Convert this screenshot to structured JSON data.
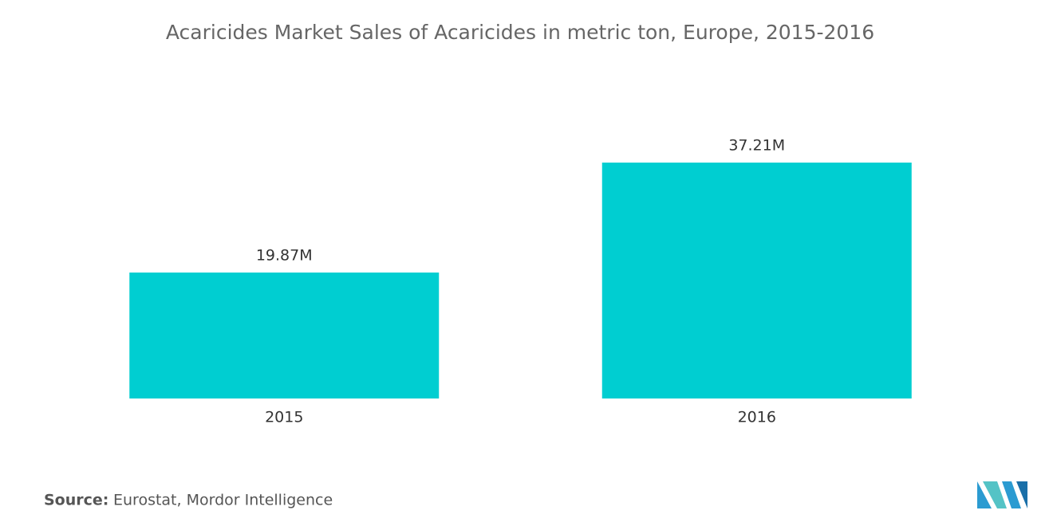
{
  "chart_data": {
    "type": "bar",
    "title": "Acaricides Market Sales of Acaricides in metric ton, Europe, 2015-2016",
    "categories": [
      "2015",
      "2016"
    ],
    "values": [
      19870000,
      37210000
    ],
    "value_labels": [
      "19.87M",
      "37.21M"
    ],
    "color": "#00ced1",
    "source_label": "Source:",
    "source": "Eurostat, Mordor Intelligence"
  }
}
